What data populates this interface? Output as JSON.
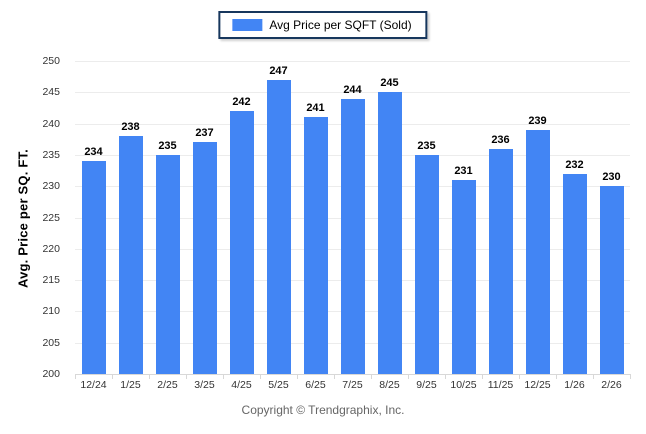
{
  "legend": {
    "label": "Avg Price per SQFT (Sold)",
    "swatch_color": "#4285f4"
  },
  "footer": {
    "copyright": "Copyright © Trendgraphix, Inc."
  },
  "chart_data": {
    "type": "bar",
    "title": "Avg Price per SQFT (Sold)",
    "categories": [
      "12/24",
      "1/25",
      "2/25",
      "3/25",
      "4/25",
      "5/25",
      "6/25",
      "7/25",
      "8/25",
      "9/25",
      "10/25",
      "11/25",
      "12/25",
      "1/26",
      "2/26"
    ],
    "values": [
      234,
      238,
      235,
      237,
      242,
      247,
      241,
      244,
      245,
      235,
      231,
      236,
      239,
      232,
      230
    ],
    "xlabel": "",
    "ylabel": "Avg. Price per SQ. FT.",
    "ylim": [
      200,
      250
    ],
    "ytick_step": 5,
    "grid": true,
    "legend_position": "top",
    "bar_color": "#4285f4"
  }
}
